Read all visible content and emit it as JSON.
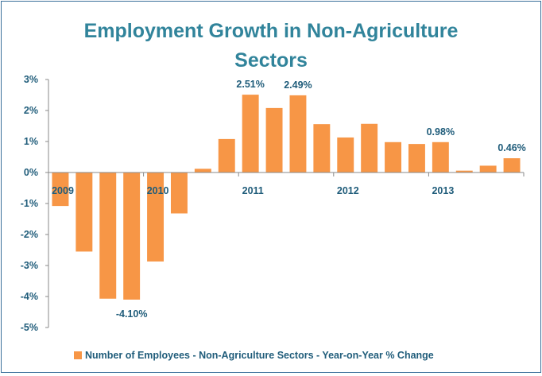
{
  "chart_data": {
    "type": "bar",
    "title_lines": [
      "Employment Growth in Non-Agriculture",
      "Sectors"
    ],
    "ylim": [
      -5,
      3
    ],
    "yticks": [
      "3%",
      "2%",
      "1%",
      "0%",
      "-1%",
      "-2%",
      "-3%",
      "-4%",
      "-5%"
    ],
    "ytick_values": [
      3,
      2,
      1,
      0,
      -1,
      -2,
      -3,
      -4,
      -5
    ],
    "x_labels": [
      {
        "label": "2009",
        "bar_index": 0
      },
      {
        "label": "2010",
        "bar_index": 4
      },
      {
        "label": "2011",
        "bar_index": 8
      },
      {
        "label": "2012",
        "bar_index": 12
      },
      {
        "label": "2013",
        "bar_index": 16
      }
    ],
    "series": [
      {
        "name": "Number of Employees - Non-Agriculture Sectors - Year-on-Year % Change",
        "values": [
          -1.08,
          -2.55,
          -4.07,
          -4.1,
          -2.87,
          -1.32,
          0.12,
          1.08,
          2.51,
          2.08,
          2.49,
          1.56,
          1.13,
          1.57,
          0.98,
          0.92,
          0.98,
          0.06,
          0.22,
          0.46
        ]
      }
    ],
    "data_labels": [
      {
        "bar_index": 3,
        "text": "-4.10%"
      },
      {
        "bar_index": 8,
        "text": "2.51%"
      },
      {
        "bar_index": 10,
        "text": "2.49%"
      },
      {
        "bar_index": 16,
        "text": "0.98%"
      },
      {
        "bar_index": 19,
        "text": "0.46%"
      }
    ],
    "grid": false,
    "legend_position": "bottom",
    "colors": {
      "bar": "#f79646",
      "title": "#31849b",
      "axis_text": "#1f5c7a",
      "axis_line": "#898989",
      "border": "#3a6f9a"
    }
  }
}
